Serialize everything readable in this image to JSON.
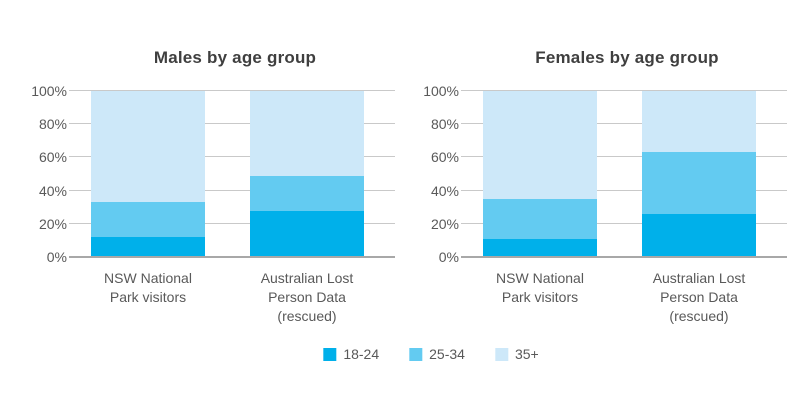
{
  "page": {
    "background": "#ffffff"
  },
  "palette": {
    "age_18_24": "#00b0ea",
    "age_25_34": "#63cbf1",
    "age_35_plus": "#cde8f9",
    "gridline": "#c9c9c9",
    "axisline": "#a8a8a8",
    "label_text": "#595959",
    "title_text": "#3f3f3f"
  },
  "chart_data": [
    {
      "type": "bar",
      "stacked": true,
      "percent_scale": true,
      "title": "Males by age group",
      "categories": [
        "NSW National Park visitors",
        "Australian Lost Person Data (rescued)"
      ],
      "category_label_lines": [
        [
          "NSW National",
          "Park visitors"
        ],
        [
          "Australian Lost",
          "Person Data",
          "(rescued)"
        ]
      ],
      "series": [
        {
          "name": "18-24",
          "color": "#00b0ea",
          "values": [
            12,
            28
          ]
        },
        {
          "name": "25-34",
          "color": "#63cbf1",
          "values": [
            21,
            21
          ]
        },
        {
          "name": "35+",
          "color": "#cde8f9",
          "values": [
            67,
            51
          ]
        }
      ],
      "ylim": [
        0,
        100
      ],
      "ytick_values": [
        0,
        20,
        40,
        60,
        80,
        100
      ],
      "ytick_labels": [
        "0%",
        "20%",
        "40%",
        "60%",
        "80%",
        "100%"
      ],
      "grid": true,
      "legend_position": "bottom-center-shared"
    },
    {
      "type": "bar",
      "stacked": true,
      "percent_scale": true,
      "title": "Females by age group",
      "categories": [
        "NSW National Park visitors",
        "Australian Lost Person Data (rescued)"
      ],
      "category_label_lines": [
        [
          "NSW National",
          "Park visitors"
        ],
        [
          "Australian Lost",
          "Person Data",
          "(rescued)"
        ]
      ],
      "series": [
        {
          "name": "18-24",
          "color": "#00b0ea",
          "values": [
            11,
            26
          ]
        },
        {
          "name": "25-34",
          "color": "#63cbf1",
          "values": [
            24,
            37
          ]
        },
        {
          "name": "35+",
          "color": "#cde8f9",
          "values": [
            65,
            37
          ]
        }
      ],
      "ylim": [
        0,
        100
      ],
      "ytick_values": [
        0,
        20,
        40,
        60,
        80,
        100
      ],
      "ytick_labels": [
        "0%",
        "20%",
        "40%",
        "60%",
        "80%",
        "100%"
      ],
      "grid": true,
      "legend_position": "bottom-center-shared"
    }
  ],
  "legend": {
    "items": [
      {
        "label": "18-24",
        "color": "#00b0ea"
      },
      {
        "label": "25-34",
        "color": "#63cbf1"
      },
      {
        "label": "35+",
        "color": "#cde8f9"
      }
    ]
  }
}
